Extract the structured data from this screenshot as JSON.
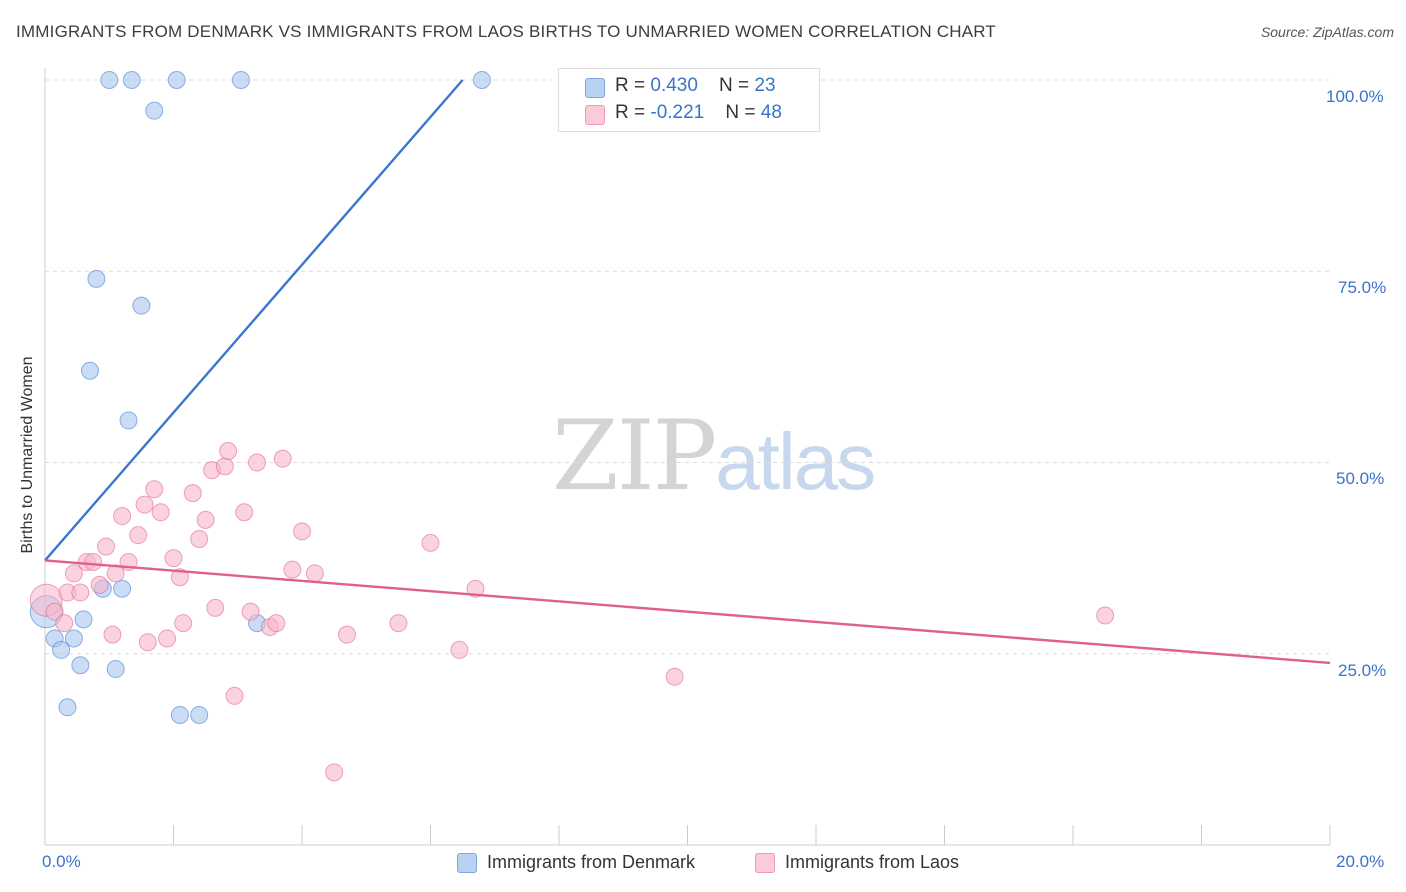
{
  "title": "IMMIGRANTS FROM DENMARK VS IMMIGRANTS FROM LAOS BIRTHS TO UNMARRIED WOMEN CORRELATION CHART",
  "source": "Source: ZipAtlas.com",
  "watermark": {
    "part1": "ZIP",
    "part2": "atlas"
  },
  "legend_stats": [
    {
      "r_label": "R = ",
      "r_value": "0.430",
      "n_label": "N = ",
      "n_value": "23",
      "color": "#a9c6ef"
    },
    {
      "r_label": "R = ",
      "r_value": "-0.221",
      "n_label": "N = ",
      "n_value": "48",
      "color": "#f6b6ca"
    }
  ],
  "chart_data": {
    "type": "scatter",
    "title": "IMMIGRANTS FROM DENMARK VS IMMIGRANTS FROM LAOS BIRTHS TO UNMARRIED WOMEN CORRELATION CHART",
    "xlabel": "",
    "ylabel": "Births to Unmarried Women",
    "xlim": [
      0,
      20
    ],
    "ylim": [
      0,
      100
    ],
    "x_tick_labels": [
      "0.0%",
      "20.0%"
    ],
    "y_ticks": [
      25,
      50,
      75,
      100
    ],
    "y_tick_labels": [
      "25.0%",
      "50.0%",
      "75.0%",
      "100.0%"
    ],
    "legend_position": "bottom",
    "series": [
      {
        "name": "Immigrants from Denmark",
        "color": "#3a78d0",
        "fill": "#a9c6ef",
        "trend": {
          "x": [
            0,
            6.5
          ],
          "y": [
            37.2,
            100
          ]
        },
        "points": [
          {
            "x": 0.02,
            "y": 30.5
          },
          {
            "x": 0.15,
            "y": 27.0
          },
          {
            "x": 0.25,
            "y": 25.5
          },
          {
            "x": 0.45,
            "y": 27.0
          },
          {
            "x": 0.55,
            "y": 23.5
          },
          {
            "x": 0.35,
            "y": 18.0
          },
          {
            "x": 0.6,
            "y": 29.5
          },
          {
            "x": 0.9,
            "y": 33.5
          },
          {
            "x": 1.1,
            "y": 23.0
          },
          {
            "x": 1.2,
            "y": 33.5
          },
          {
            "x": 0.8,
            "y": 74.0
          },
          {
            "x": 0.7,
            "y": 62.0
          },
          {
            "x": 1.3,
            "y": 55.5
          },
          {
            "x": 1.5,
            "y": 70.5
          },
          {
            "x": 1.0,
            "y": 100.0
          },
          {
            "x": 1.35,
            "y": 100.0
          },
          {
            "x": 2.05,
            "y": 100.0
          },
          {
            "x": 3.05,
            "y": 100.0
          },
          {
            "x": 6.8,
            "y": 100.0
          },
          {
            "x": 1.7,
            "y": 96.0
          },
          {
            "x": 2.1,
            "y": 17.0
          },
          {
            "x": 2.4,
            "y": 17.0
          },
          {
            "x": 3.3,
            "y": 29.0
          }
        ]
      },
      {
        "name": "Immigrants from Laos",
        "color": "#e0608a",
        "fill": "#f6b6ca",
        "trend": {
          "x": [
            0,
            20
          ],
          "y": [
            37.2,
            23.8
          ]
        },
        "points": [
          {
            "x": 0.02,
            "y": 32.0
          },
          {
            "x": 0.15,
            "y": 30.5
          },
          {
            "x": 0.3,
            "y": 29.0
          },
          {
            "x": 0.35,
            "y": 33.0
          },
          {
            "x": 0.45,
            "y": 35.5
          },
          {
            "x": 0.55,
            "y": 33.0
          },
          {
            "x": 0.65,
            "y": 37.0
          },
          {
            "x": 0.75,
            "y": 37.0
          },
          {
            "x": 0.85,
            "y": 34.0
          },
          {
            "x": 0.95,
            "y": 39.0
          },
          {
            "x": 1.05,
            "y": 27.5
          },
          {
            "x": 1.1,
            "y": 35.5
          },
          {
            "x": 1.2,
            "y": 43.0
          },
          {
            "x": 1.3,
            "y": 37.0
          },
          {
            "x": 1.45,
            "y": 40.5
          },
          {
            "x": 1.55,
            "y": 44.5
          },
          {
            "x": 1.6,
            "y": 26.5
          },
          {
            "x": 1.7,
            "y": 46.5
          },
          {
            "x": 1.8,
            "y": 43.5
          },
          {
            "x": 1.9,
            "y": 27.0
          },
          {
            "x": 2.0,
            "y": 37.5
          },
          {
            "x": 2.1,
            "y": 35.0
          },
          {
            "x": 2.15,
            "y": 29.0
          },
          {
            "x": 2.3,
            "y": 46.0
          },
          {
            "x": 2.4,
            "y": 40.0
          },
          {
            "x": 2.5,
            "y": 42.5
          },
          {
            "x": 2.6,
            "y": 49.0
          },
          {
            "x": 2.65,
            "y": 31.0
          },
          {
            "x": 2.8,
            "y": 49.5
          },
          {
            "x": 2.85,
            "y": 51.5
          },
          {
            "x": 2.95,
            "y": 19.5
          },
          {
            "x": 3.1,
            "y": 43.5
          },
          {
            "x": 3.2,
            "y": 30.5
          },
          {
            "x": 3.3,
            "y": 50.0
          },
          {
            "x": 3.5,
            "y": 28.5
          },
          {
            "x": 3.6,
            "y": 29.0
          },
          {
            "x": 3.7,
            "y": 50.5
          },
          {
            "x": 3.85,
            "y": 36.0
          },
          {
            "x": 4.0,
            "y": 41.0
          },
          {
            "x": 4.2,
            "y": 35.5
          },
          {
            "x": 4.5,
            "y": 9.5
          },
          {
            "x": 4.7,
            "y": 27.5
          },
          {
            "x": 5.5,
            "y": 29.0
          },
          {
            "x": 6.0,
            "y": 39.5
          },
          {
            "x": 6.45,
            "y": 25.5
          },
          {
            "x": 6.7,
            "y": 33.5
          },
          {
            "x": 9.8,
            "y": 22.0
          },
          {
            "x": 16.5,
            "y": 30.0
          }
        ]
      }
    ]
  }
}
